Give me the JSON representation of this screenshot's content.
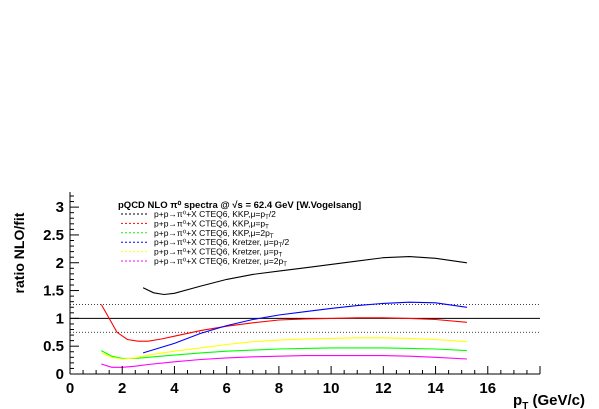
{
  "chart_data": {
    "type": "line",
    "title": "pQCD NLO π⁰ spectra @ √s = 62.4 GeV [W.Vogelsang]",
    "xlabel": "p_T (GeV/c)",
    "ylabel": "ratio NLO/fit",
    "xlim": [
      0,
      18
    ],
    "ylim": [
      0,
      3.2
    ],
    "x_ticks": [
      "0",
      "2",
      "4",
      "6",
      "8",
      "10",
      "12",
      "14",
      "16"
    ],
    "y_ticks": [
      "0",
      "0.5",
      "1",
      "1.5",
      "2",
      "2.5",
      "3"
    ],
    "legend_position": "top-left",
    "reference_lines": [
      {
        "y": 1.0,
        "style": "solid",
        "color": "#000000"
      },
      {
        "y": 1.25,
        "style": "dotted",
        "color": "#000000"
      },
      {
        "y": 0.75,
        "style": "dotted",
        "color": "#000000"
      }
    ],
    "legend": [
      {
        "label": "p+p→π⁰+X CTEQ6, KKP,μ=p_T/2",
        "color": "#000000"
      },
      {
        "label": "p+p→π⁰+X CTEQ6, KKP,μ=p_T",
        "color": "#ff0000"
      },
      {
        "label": "p+p→π⁰+X CTEQ6, KKP,μ=2p_T",
        "color": "#00ff00"
      },
      {
        "label": "p+p→π⁰+X CTEQ6, Kretzer, μ=p_T/2",
        "color": "#0000ff"
      },
      {
        "label": "p+p→π⁰+X CTEQ6, Kretzer, μ=p_T",
        "color": "#ffff00"
      },
      {
        "label": "p+p→π⁰+X CTEQ6, Kretzer, μ=2p_T",
        "color": "#ff00ff"
      }
    ],
    "series": [
      {
        "color": "#000000",
        "x": [
          2.8,
          3.2,
          3.6,
          4.0,
          5.0,
          6.0,
          7.0,
          8.0,
          9.0,
          10.0,
          11.0,
          12.0,
          13.0,
          14.0,
          15.2
        ],
        "y": [
          1.55,
          1.46,
          1.43,
          1.45,
          1.58,
          1.7,
          1.79,
          1.85,
          1.91,
          1.97,
          2.03,
          2.09,
          2.11,
          2.08,
          2.0
        ]
      },
      {
        "color": "#ff0000",
        "x": [
          1.2,
          1.5,
          1.8,
          2.2,
          2.6,
          3.0,
          3.5,
          4.0,
          5.0,
          6.0,
          7.0,
          8.0,
          9.0,
          10.0,
          11.0,
          12.0,
          13.0,
          14.0,
          15.2
        ],
        "y": [
          1.25,
          1.0,
          0.75,
          0.62,
          0.59,
          0.59,
          0.63,
          0.68,
          0.78,
          0.86,
          0.92,
          0.97,
          0.99,
          1.0,
          1.01,
          1.01,
          1.0,
          0.98,
          0.93
        ]
      },
      {
        "color": "#00ff00",
        "x": [
          1.2,
          1.6,
          2.0,
          2.5,
          3.0,
          4.0,
          5.0,
          6.0,
          7.0,
          8.0,
          9.0,
          10.0,
          11.0,
          12.0,
          13.0,
          14.0,
          15.2
        ],
        "y": [
          0.42,
          0.32,
          0.28,
          0.28,
          0.3,
          0.34,
          0.38,
          0.41,
          0.43,
          0.45,
          0.46,
          0.47,
          0.47,
          0.47,
          0.46,
          0.45,
          0.42
        ]
      },
      {
        "color": "#0000ff",
        "x": [
          2.8,
          4.0,
          5.0,
          6.0,
          7.0,
          8.0,
          9.0,
          10.0,
          11.0,
          12.0,
          13.0,
          14.0,
          15.2
        ],
        "y": [
          0.38,
          0.55,
          0.73,
          0.87,
          0.98,
          1.06,
          1.12,
          1.18,
          1.23,
          1.27,
          1.29,
          1.28,
          1.2
        ]
      },
      {
        "color": "#ffff00",
        "x": [
          1.2,
          1.6,
          2.0,
          2.5,
          3.0,
          4.0,
          5.0,
          6.0,
          7.0,
          8.0,
          9.0,
          10.0,
          11.0,
          12.0,
          13.0,
          14.0,
          15.2
        ],
        "y": [
          0.38,
          0.3,
          0.27,
          0.29,
          0.34,
          0.41,
          0.47,
          0.53,
          0.58,
          0.61,
          0.63,
          0.64,
          0.65,
          0.65,
          0.64,
          0.62,
          0.58
        ]
      },
      {
        "color": "#ff00ff",
        "x": [
          1.2,
          1.6,
          2.0,
          2.5,
          3.0,
          4.0,
          5.0,
          6.0,
          7.0,
          8.0,
          9.0,
          10.0,
          11.0,
          12.0,
          13.0,
          14.0,
          15.2
        ],
        "y": [
          0.18,
          0.12,
          0.12,
          0.14,
          0.17,
          0.22,
          0.26,
          0.29,
          0.31,
          0.32,
          0.33,
          0.33,
          0.33,
          0.33,
          0.32,
          0.3,
          0.27
        ]
      }
    ]
  }
}
